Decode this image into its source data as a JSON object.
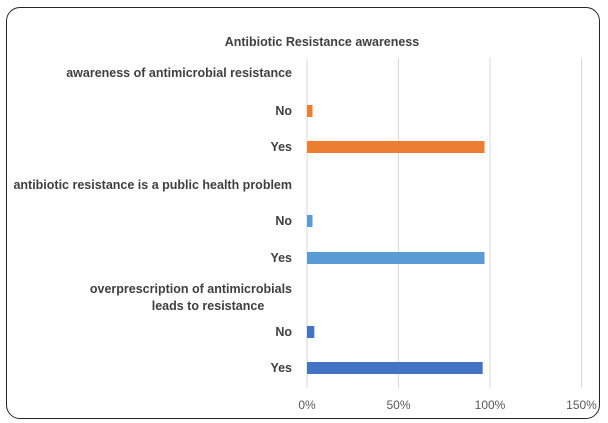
{
  "chart_data": {
    "type": "bar",
    "orientation": "horizontal",
    "title": "Antibiotic Resistance awareness",
    "xlabel": "",
    "ylabel": "",
    "xlim": [
      0,
      150
    ],
    "x_ticks": [
      "0%",
      "50%",
      "100%",
      "150%"
    ],
    "x_tick_values": [
      0,
      50,
      100,
      150
    ],
    "grid": true,
    "legend": "none",
    "groups": [
      {
        "label": "awareness of antimicrobial resistance",
        "color": "#ED7D31",
        "bars": [
          {
            "label": "No",
            "value": 3
          },
          {
            "label": "Yes",
            "value": 97
          }
        ]
      },
      {
        "label": "antibiotic resistance is a public health problem",
        "color": "#5B9BD5",
        "bars": [
          {
            "label": "No",
            "value": 3
          },
          {
            "label": "Yes",
            "value": 97
          }
        ]
      },
      {
        "label": "overprescription of antimicrobials  leads to resistance",
        "color": "#4472C4",
        "bars": [
          {
            "label": "No",
            "value": 4
          },
          {
            "label": "Yes",
            "value": 96
          }
        ]
      }
    ]
  }
}
